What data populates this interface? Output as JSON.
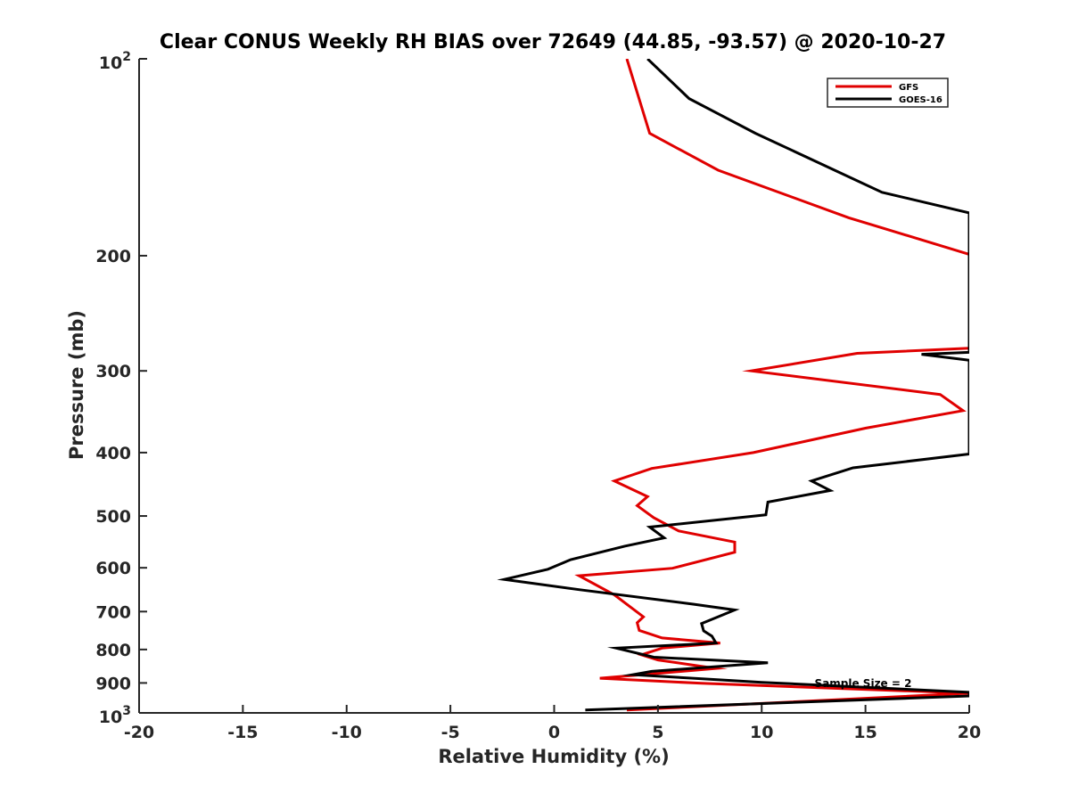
{
  "chart_data": {
    "type": "line",
    "title": "Clear CONUS Weekly RH BIAS over 72649 (44.85, -93.57) @ 2020-10-27",
    "xlabel": "Relative Humidity (%)",
    "ylabel": "Pressure (mb)",
    "xlim": [
      -20,
      20
    ],
    "ylim": [
      100,
      1000
    ],
    "y_scale": "log",
    "y_reversed": true,
    "grid": false,
    "legend_position": "top-right",
    "x_ticks": [
      -20,
      -15,
      -10,
      -5,
      0,
      5,
      10,
      15,
      20
    ],
    "x_tick_labels": [
      "-20",
      "-15",
      "-10",
      "-5",
      "0",
      "5",
      "10",
      "15",
      "20"
    ],
    "y_ticks": [
      200,
      300,
      400,
      500,
      600,
      700,
      800,
      900
    ],
    "y_tick_labels": [
      "200",
      "300",
      "400",
      "500",
      "600",
      "700",
      "800",
      "900"
    ],
    "y_end_labels": {
      "top": {
        "base": "10",
        "exp": "2"
      },
      "bottom": {
        "base": "10",
        "exp": "3"
      }
    },
    "series": [
      {
        "name": "GFS",
        "color": "#e00000",
        "points": [
          [
            3.5,
            100
          ],
          [
            4.6,
            130
          ],
          [
            7.9,
            148
          ],
          [
            14.2,
            175
          ],
          [
            20.0,
            199
          ],
          [
            20.0,
            277
          ],
          [
            14.6,
            282
          ],
          [
            9.5,
            300
          ],
          [
            18.6,
            326
          ],
          [
            19.7,
            345
          ],
          [
            15.0,
            367
          ],
          [
            9.6,
            400
          ],
          [
            4.7,
            423
          ],
          [
            2.9,
            442
          ],
          [
            4.5,
            467
          ],
          [
            4.0,
            482
          ],
          [
            4.8,
            503
          ],
          [
            6.0,
            527
          ],
          [
            8.7,
            548
          ],
          [
            8.7,
            568
          ],
          [
            5.7,
            601
          ],
          [
            1.2,
            617
          ],
          [
            2.9,
            660
          ],
          [
            4.3,
            713
          ],
          [
            4.0,
            728
          ],
          [
            4.1,
            748
          ],
          [
            5.2,
            768
          ],
          [
            8.0,
            782
          ],
          [
            5.2,
            796
          ],
          [
            4.2,
            815
          ],
          [
            5.0,
            830
          ],
          [
            7.8,
            855
          ],
          [
            2.2,
            885
          ],
          [
            7.1,
            901
          ],
          [
            20.0,
            933
          ],
          [
            3.5,
            990
          ]
        ]
      },
      {
        "name": "GOES-16",
        "color": "#000000",
        "points": [
          [
            4.5,
            100
          ],
          [
            6.5,
            115
          ],
          [
            9.7,
            130
          ],
          [
            15.8,
            160
          ],
          [
            20.0,
            172
          ],
          [
            20.0,
            281
          ],
          [
            17.7,
            283
          ],
          [
            20.0,
            289
          ],
          [
            20.0,
            402
          ],
          [
            14.4,
            422
          ],
          [
            12.4,
            442
          ],
          [
            13.3,
            457
          ],
          [
            10.3,
            476
          ],
          [
            10.2,
            498
          ],
          [
            4.6,
            520
          ],
          [
            5.3,
            540
          ],
          [
            3.4,
            556
          ],
          [
            0.8,
            583
          ],
          [
            -0.3,
            603
          ],
          [
            -2.4,
            625
          ],
          [
            1.2,
            648
          ],
          [
            6.7,
            682
          ],
          [
            8.7,
            696
          ],
          [
            7.8,
            715
          ],
          [
            7.1,
            730
          ],
          [
            7.2,
            749
          ],
          [
            7.6,
            763
          ],
          [
            7.8,
            782
          ],
          [
            3.0,
            796
          ],
          [
            4.8,
            822
          ],
          [
            10.3,
            838
          ],
          [
            4.7,
            864
          ],
          [
            3.8,
            874
          ],
          [
            10.0,
            898
          ],
          [
            20.0,
            930
          ],
          [
            20.0,
            942
          ],
          [
            1.5,
            990
          ]
        ]
      }
    ],
    "annotation": "Sample Size = 2"
  }
}
